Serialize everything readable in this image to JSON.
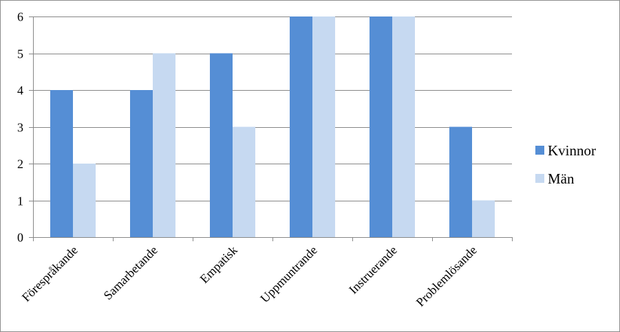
{
  "chart_data": {
    "type": "bar",
    "title": "",
    "xlabel": "",
    "ylabel": "",
    "categories": [
      "Förespråkande",
      "Samarbetande",
      "Empatisk",
      "Uppmuntrande",
      "Instruerande",
      "Problemlösande"
    ],
    "series": [
      {
        "name": "Kvinnor",
        "values": [
          4,
          4,
          5,
          6,
          6,
          3
        ],
        "color": "#558ed5"
      },
      {
        "name": "Män",
        "values": [
          2,
          5,
          3,
          6,
          6,
          1
        ],
        "color": "#c6d9f1"
      }
    ],
    "ylim": [
      0,
      6
    ],
    "yticks": [
      "0",
      "1",
      "2",
      "3",
      "4",
      "5",
      "6"
    ],
    "grid": true,
    "legend_position": "right",
    "axis_color": "#868686",
    "grid_color": "#868686"
  }
}
